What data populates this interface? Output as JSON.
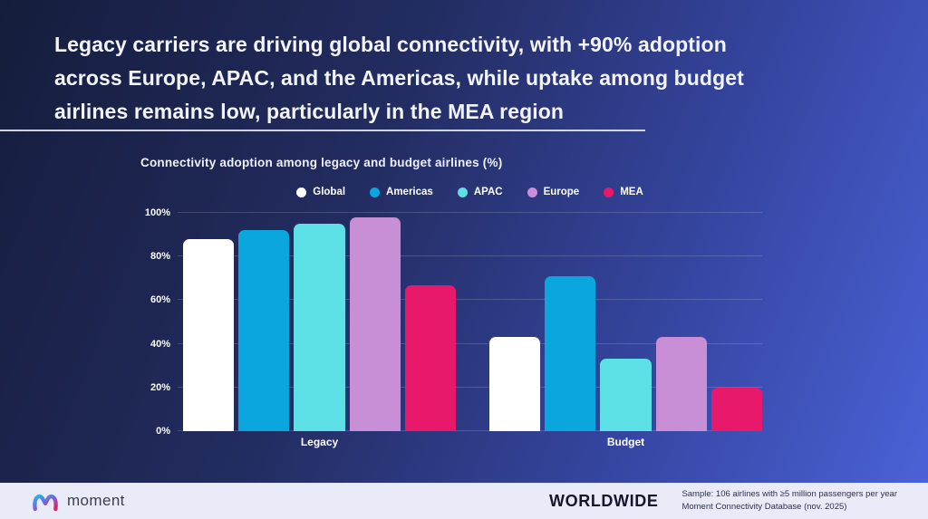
{
  "title": {
    "lines": [
      "Legacy carriers are driving global connectivity, with +90% adoption",
      "across Europe, APAC, and the Americas, while uptake among budget",
      "airlines remains low, particularly in the MEA region"
    ]
  },
  "chart_data": {
    "type": "bar",
    "title": "Connectivity adoption among legacy and budget airlines (%)",
    "categories": [
      "Legacy",
      "Budget"
    ],
    "series": [
      {
        "name": "Global",
        "color": "#ffffff",
        "values": [
          88,
          43
        ]
      },
      {
        "name": "Americas",
        "color": "#09a7dd",
        "values": [
          92,
          71
        ]
      },
      {
        "name": "APAC",
        "color": "#5ce0e6",
        "values": [
          95,
          33
        ]
      },
      {
        "name": "Europe",
        "color": "#c98fd6",
        "values": [
          98,
          43
        ]
      },
      {
        "name": "MEA",
        "color": "#e8196b",
        "values": [
          67,
          20
        ]
      }
    ],
    "xlabel": "",
    "ylabel": "",
    "ylim": [
      0,
      100
    ],
    "yticks": [
      "0%",
      "20%",
      "40%",
      "60%",
      "80%",
      "100%"
    ],
    "grid": true,
    "legend_position": "top"
  },
  "footer": {
    "brand": "moment",
    "region_label": "WORLDWIDE",
    "sample_line1": "Sample: 106 airlines with ≥5 million passengers per year",
    "sample_line2": "Moment Connectivity Database (nov. 2025)"
  },
  "colors": {
    "background_start": "#151d3c",
    "background_end": "#4c63d9",
    "footer_background": "#e9ebf8",
    "brand_gradient_start": "#2bb3ea",
    "brand_gradient_end": "#ec1968"
  }
}
